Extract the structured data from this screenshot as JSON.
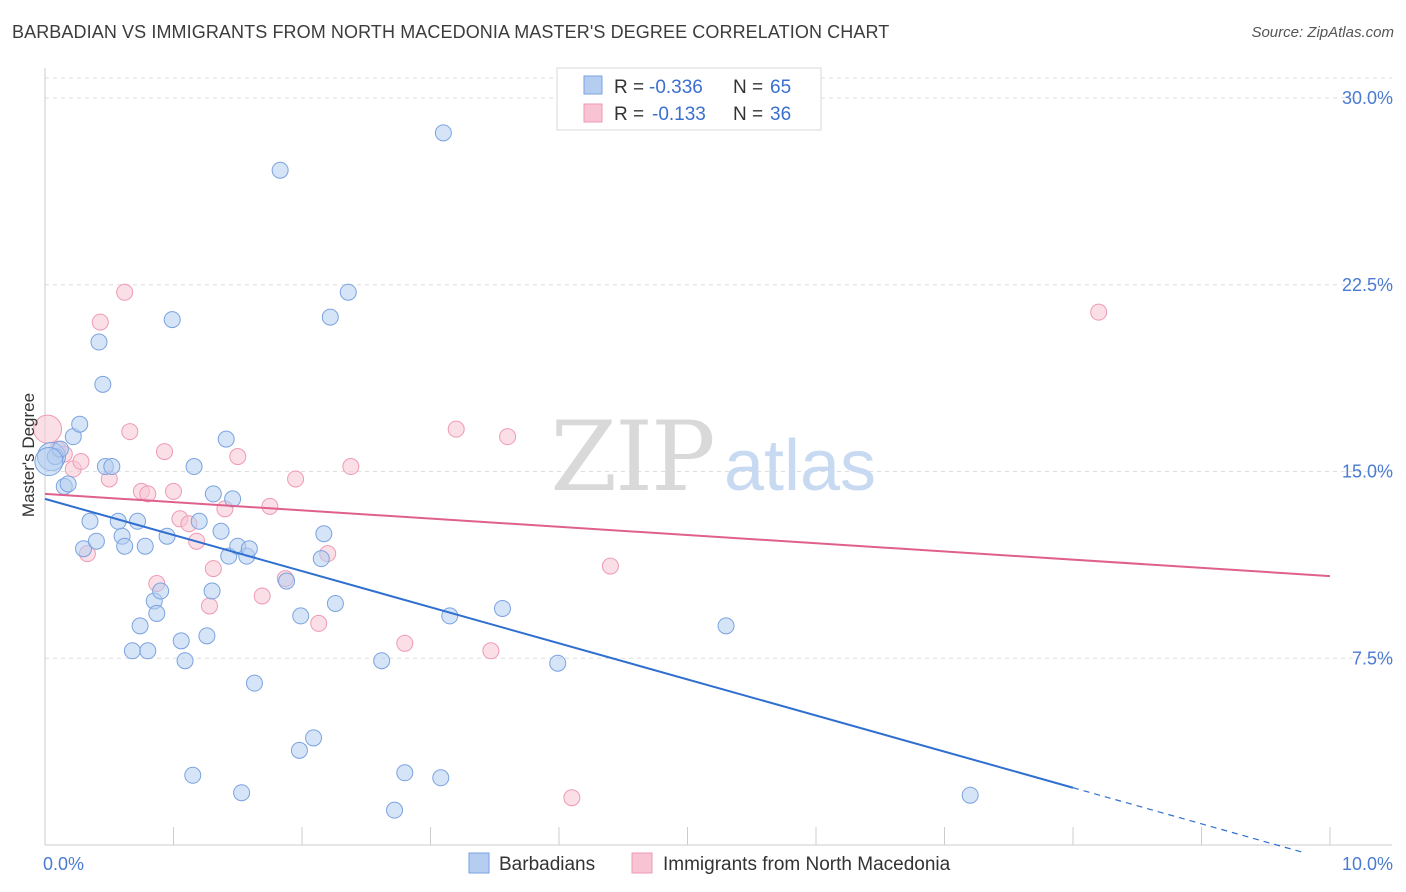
{
  "title": "BARBADIAN VS IMMIGRANTS FROM NORTH MACEDONIA MASTER'S DEGREE CORRELATION CHART",
  "source": "Source: ZipAtlas.com",
  "watermark": {
    "zip": "ZIP",
    "atlas": "atlas"
  },
  "colors": {
    "blue_fill": "#b4cdf0",
    "blue_stroke": "#7aa3e0",
    "blue_line": "#2f6fd0",
    "pink_fill": "#f8c4d4",
    "pink_stroke": "#ef9ab5",
    "pink_line": "#e0608c",
    "value_text": "#3a6fd0",
    "grid": "#dddddd"
  },
  "legend_top": [
    {
      "r_label": "R =",
      "r_value": "-0.336",
      "n_label": "N =",
      "n_value": "65"
    },
    {
      "r_label": "R =",
      "r_value": "-0.133",
      "n_label": "N =",
      "n_value": "36"
    }
  ],
  "chart_data": {
    "type": "scatter",
    "title": "BARBADIAN VS IMMIGRANTS FROM NORTH MACEDONIA MASTER'S DEGREE CORRELATION CHART",
    "xlabel": "",
    "ylabel": "Master's Degree",
    "xlim": [
      0,
      10
    ],
    "ylim": [
      0,
      30
    ],
    "x_tick_labels": [
      {
        "value": 0,
        "label": "0.0%"
      },
      {
        "value": 10,
        "label": "10.0%"
      }
    ],
    "y_tick_labels": [
      {
        "value": 7.5,
        "label": "7.5%"
      },
      {
        "value": 15,
        "label": "15.0%"
      },
      {
        "value": 22.5,
        "label": "22.5%"
      },
      {
        "value": 30,
        "label": "30.0%"
      }
    ],
    "series": [
      {
        "name": "Barbadians",
        "color": "blue",
        "trend": {
          "x0": 0,
          "y0": 13.9,
          "x1": 8.0,
          "y1": 2.3,
          "dashed_to_x": 9.8
        },
        "points": [
          [
            0.05,
            15.6
          ],
          [
            0.08,
            15.6
          ],
          [
            0.12,
            15.9
          ],
          [
            0.15,
            14.4
          ],
          [
            0.18,
            14.5
          ],
          [
            0.22,
            16.4
          ],
          [
            0.27,
            16.9
          ],
          [
            0.3,
            11.9
          ],
          [
            0.35,
            13.0
          ],
          [
            0.4,
            12.2
          ],
          [
            0.42,
            20.2
          ],
          [
            0.45,
            18.5
          ],
          [
            0.47,
            15.2
          ],
          [
            0.52,
            15.2
          ],
          [
            0.57,
            13.0
          ],
          [
            0.6,
            12.4
          ],
          [
            0.62,
            12.0
          ],
          [
            0.68,
            7.8
          ],
          [
            0.72,
            13.0
          ],
          [
            0.74,
            8.8
          ],
          [
            0.78,
            12.0
          ],
          [
            0.8,
            7.8
          ],
          [
            0.85,
            9.8
          ],
          [
            0.87,
            9.3
          ],
          [
            0.9,
            10.2
          ],
          [
            0.95,
            12.4
          ],
          [
            0.99,
            21.1
          ],
          [
            1.06,
            8.2
          ],
          [
            1.09,
            7.4
          ],
          [
            1.15,
            2.8
          ],
          [
            1.16,
            15.2
          ],
          [
            1.2,
            13.0
          ],
          [
            1.26,
            8.4
          ],
          [
            1.3,
            10.2
          ],
          [
            1.31,
            14.1
          ],
          [
            1.37,
            12.6
          ],
          [
            1.41,
            16.3
          ],
          [
            1.43,
            11.6
          ],
          [
            1.46,
            13.9
          ],
          [
            1.5,
            12.0
          ],
          [
            1.53,
            2.1
          ],
          [
            1.57,
            11.6
          ],
          [
            1.59,
            11.9
          ],
          [
            1.63,
            6.5
          ],
          [
            1.83,
            27.1
          ],
          [
            1.88,
            10.6
          ],
          [
            1.98,
            3.8
          ],
          [
            1.99,
            9.2
          ],
          [
            2.09,
            4.3
          ],
          [
            2.15,
            11.5
          ],
          [
            2.17,
            12.5
          ],
          [
            2.22,
            21.2
          ],
          [
            2.26,
            9.7
          ],
          [
            2.36,
            22.2
          ],
          [
            2.62,
            7.4
          ],
          [
            2.72,
            1.4
          ],
          [
            2.8,
            2.9
          ],
          [
            3.08,
            2.7
          ],
          [
            3.1,
            28.6
          ],
          [
            3.15,
            9.2
          ],
          [
            3.56,
            9.5
          ],
          [
            3.99,
            7.3
          ],
          [
            5.3,
            8.8
          ],
          [
            7.2,
            2.0
          ],
          [
            0.03,
            15.4
          ]
        ]
      },
      {
        "name": "Immigrants from North Macedonia",
        "color": "pink",
        "trend": {
          "x0": 0,
          "y0": 14.1,
          "x1": 10.0,
          "y1": 10.8
        },
        "points": [
          [
            0.02,
            16.7
          ],
          [
            0.1,
            15.9
          ],
          [
            0.15,
            15.7
          ],
          [
            0.22,
            15.1
          ],
          [
            0.28,
            15.4
          ],
          [
            0.33,
            11.7
          ],
          [
            0.43,
            21.0
          ],
          [
            0.5,
            14.7
          ],
          [
            0.62,
            22.2
          ],
          [
            0.66,
            16.6
          ],
          [
            0.75,
            14.2
          ],
          [
            0.8,
            14.1
          ],
          [
            0.87,
            10.5
          ],
          [
            0.93,
            15.8
          ],
          [
            1.0,
            14.2
          ],
          [
            1.05,
            13.1
          ],
          [
            1.12,
            12.9
          ],
          [
            1.18,
            12.2
          ],
          [
            1.28,
            9.6
          ],
          [
            1.31,
            11.1
          ],
          [
            1.4,
            13.5
          ],
          [
            1.5,
            15.6
          ],
          [
            1.69,
            10.0
          ],
          [
            1.75,
            13.6
          ],
          [
            1.87,
            10.7
          ],
          [
            1.95,
            14.7
          ],
          [
            2.13,
            8.9
          ],
          [
            2.2,
            11.7
          ],
          [
            2.38,
            15.2
          ],
          [
            2.8,
            8.1
          ],
          [
            3.2,
            16.7
          ],
          [
            3.47,
            7.8
          ],
          [
            3.6,
            16.4
          ],
          [
            4.1,
            1.9
          ],
          [
            4.4,
            11.2
          ],
          [
            8.2,
            21.4
          ]
        ]
      }
    ]
  },
  "legend_bottom": [
    {
      "label": "Barbadians"
    },
    {
      "label": "Immigrants from North Macedonia"
    }
  ]
}
